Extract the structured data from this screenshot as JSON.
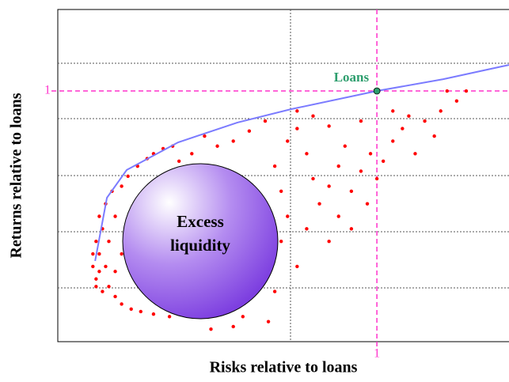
{
  "chart_data": {
    "type": "scatter",
    "x_label": "Risks relative to loans",
    "y_label": "Returns relative to loans",
    "xlim": [
      0,
      1.414
    ],
    "ylim": [
      0,
      1.325
    ],
    "xticks": [
      1
    ],
    "yticks": [
      1
    ],
    "color": "#ff0000",
    "x": [
      0.12,
      0.11,
      0.13,
      0.12,
      0.14,
      0.13,
      0.15,
      0.17,
      0.14,
      0.16,
      0.18,
      0.2,
      0.23,
      0.26,
      0.3,
      0.35,
      0.12,
      0.15,
      0.16,
      0.18,
      0.2,
      0.22,
      0.25,
      0.28,
      0.3,
      0.33,
      0.36,
      0.38,
      0.4,
      0.42,
      0.45,
      0.48,
      0.5,
      0.52,
      0.55,
      0.58,
      0.6,
      0.62,
      0.64,
      0.6,
      0.55,
      0.5,
      0.45,
      0.4,
      0.58,
      0.66,
      0.55,
      0.48,
      0.7,
      0.72,
      0.7,
      0.68,
      0.72,
      0.75,
      0.78,
      0.8,
      0.82,
      0.78,
      0.85,
      0.88,
      0.9,
      0.92,
      0.95,
      0.98,
      0.97,
      1.0,
      1.02,
      1.05,
      1.08,
      1.1,
      1.15,
      1.2,
      1.25,
      1.28,
      1.22,
      1.05,
      0.95,
      0.85,
      0.8,
      0.75,
      0.65,
      0.6,
      0.55,
      0.5,
      0.46,
      0.88,
      0.92,
      0.85,
      0.75,
      0.68,
      1.12,
      1.18,
      0.3,
      0.35,
      0.25,
      0.22,
      0.2,
      0.18,
      0.13,
      0.11
    ],
    "values": [
      0.25,
      0.3,
      0.35,
      0.4,
      0.45,
      0.5,
      0.55,
      0.6,
      0.2,
      0.22,
      0.18,
      0.15,
      0.13,
      0.12,
      0.11,
      0.1,
      0.22,
      0.3,
      0.4,
      0.5,
      0.62,
      0.66,
      0.7,
      0.73,
      0.75,
      0.77,
      0.78,
      0.72,
      0.68,
      0.75,
      0.7,
      0.65,
      0.6,
      0.55,
      0.5,
      0.45,
      0.4,
      0.35,
      0.3,
      0.25,
      0.2,
      0.17,
      0.15,
      0.12,
      0.1,
      0.08,
      0.06,
      0.05,
      0.4,
      0.5,
      0.6,
      0.7,
      0.8,
      0.85,
      0.75,
      0.65,
      0.55,
      0.45,
      0.62,
      0.7,
      0.78,
      0.6,
      0.68,
      0.75,
      0.55,
      0.65,
      0.72,
      0.8,
      0.85,
      0.9,
      0.88,
      0.92,
      0.96,
      1.0,
      1.0,
      0.92,
      0.88,
      0.86,
      0.9,
      0.92,
      0.88,
      0.84,
      0.8,
      0.78,
      0.82,
      0.5,
      0.45,
      0.4,
      0.3,
      0.2,
      0.75,
      0.82,
      0.2,
      0.25,
      0.3,
      0.45,
      0.35,
      0.28,
      0.28,
      0.35
    ],
    "frontier": {
      "type": "line",
      "color": "#7b7bff",
      "x": [
        0.117,
        0.154,
        0.216,
        0.377,
        0.563,
        0.73,
        1,
        1.208,
        1.414
      ],
      "values": [
        0.322,
        0.574,
        0.685,
        0.795,
        0.874,
        0.927,
        1,
        1.047,
        1.104
      ]
    },
    "loans_point": {
      "label": "Loans",
      "x": 1,
      "y": 1,
      "color": "#2e9e6e"
    },
    "circle_label": [
      "Excess",
      "liquidity"
    ]
  }
}
